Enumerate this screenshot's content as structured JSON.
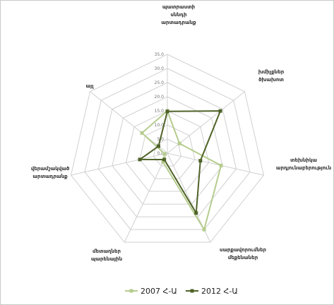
{
  "chart_data": {
    "type": "radar",
    "axes": [
      [
        "պատրաստի",
        "սննդի",
        "արտադրանք"
      ],
      [
        "խմիչքներ",
        "ծխախոտ"
      ],
      [
        "տեխնիկա",
        "արդյունաբերություն"
      ],
      [
        "սարքավորումներ",
        "մեքենաներ"
      ],
      [
        "մետաղներ",
        "պարենային"
      ],
      [
        "վերամշակված",
        "արտադրանք"
      ],
      [
        "այլ"
      ]
    ],
    "scale": {
      "min": 0,
      "max": 35,
      "step": 5
    },
    "tick_labels": [
      "0.0",
      "5.0",
      "10.0",
      "15.0",
      "20.0",
      "25.0",
      "30.0",
      "35.0"
    ],
    "series": [
      {
        "name": "2007 Հ-Ա",
        "color": "#b5cc8e",
        "values": [
          15.0,
          5.5,
          19.5,
          30.0,
          3.5,
          1.0,
          11.5
        ]
      },
      {
        "name": "2012 Հ-Ա",
        "color": "#4f6228",
        "values": [
          14.8,
          24.0,
          12.0,
          23.5,
          2.5,
          10.0,
          4.0
        ]
      }
    ],
    "legend_position": "bottom",
    "grid": true
  }
}
